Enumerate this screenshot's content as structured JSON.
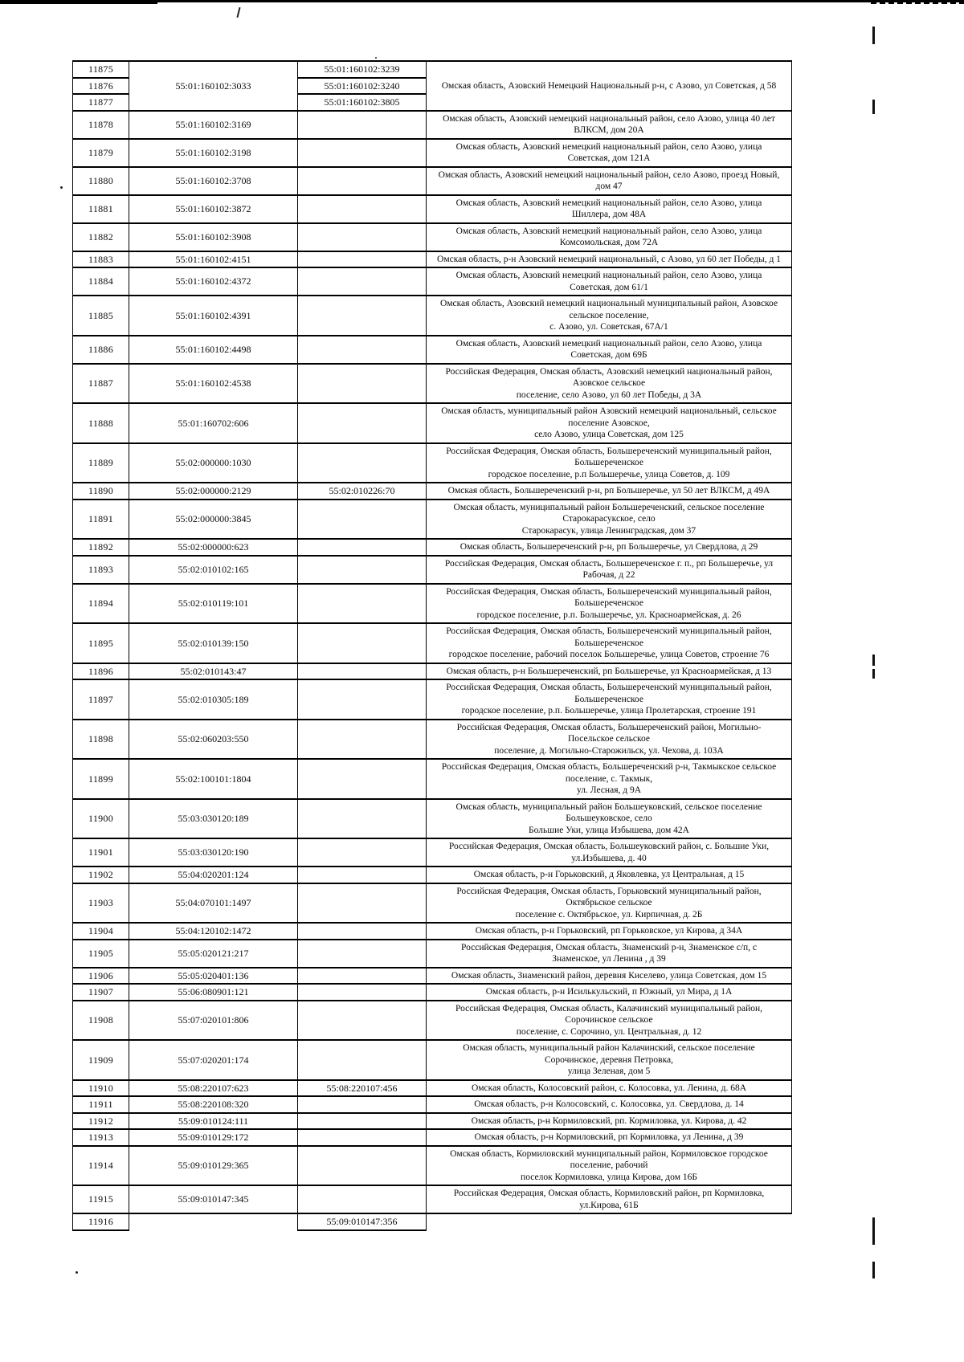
{
  "table": {
    "columns": [
      "row-number",
      "cadastral-number",
      "related-cadastral-number",
      "address"
    ],
    "rows": [
      {
        "num": "11875",
        "cad": "55:01:160102:3033",
        "cad_rowspan": 3,
        "cad2": "55:01:160102:3239",
        "addr": "Омская область, Азовский Немецкий Национальный р-н, с Азово, ул Советская, д 58",
        "addr_rowspan": 3
      },
      {
        "num": "11876",
        "cad2": "55:01:160102:3240"
      },
      {
        "num": "11877",
        "cad2": "55:01:160102:3805"
      },
      {
        "num": "11878",
        "cad": "55:01:160102:3169",
        "cad2": "",
        "addr": "Омская область, Азовский немецкий национальный район, село Азово, улица 40 лет\nВЛКСМ, дом 20А"
      },
      {
        "num": "11879",
        "cad": "55:01:160102:3198",
        "cad2": "",
        "addr": "Омская область, Азовский немецкий национальный район, село Азово, улица\nСоветская, дом 121А"
      },
      {
        "num": "11880",
        "cad": "55:01:160102:3708",
        "cad2": "",
        "addr": "Омская область, Азовский немецкий национальный район, село Азово, проезд Новый,\nдом 47"
      },
      {
        "num": "11881",
        "cad": "55:01:160102:3872",
        "cad2": "",
        "addr": "Омская область, Азовский немецкий национальный район, село Азово, улица\nШиллера, дом 48А"
      },
      {
        "num": "11882",
        "cad": "55:01:160102:3908",
        "cad2": "",
        "addr": "Омская область, Азовский немецкий национальный район, село Азово, улица\nКомсомольская, дом 72А"
      },
      {
        "num": "11883",
        "cad": "55:01:160102:4151",
        "cad2": "",
        "addr": "Омская область, р-н Азовский немецкий национальный, с Азово, ул 60 лет Победы, д 1"
      },
      {
        "num": "11884",
        "cad": "55:01:160102:4372",
        "cad2": "",
        "addr": "Омская область, Азовский немецкий национальный район, село Азово, улица\nСоветская, дом 61/1"
      },
      {
        "num": "11885",
        "cad": "55:01:160102:4391",
        "cad2": "",
        "addr": "Омская область, Азовский немецкий национальный муниципальный район, Азовское\nсельское поселение,\nс. Азово, ул. Советская, 67А/1"
      },
      {
        "num": "11886",
        "cad": "55:01:160102:4498",
        "cad2": "",
        "addr": "Омская область, Азовский немецкий национальный район, село Азово, улица\nСоветская, дом 69Б"
      },
      {
        "num": "11887",
        "cad": "55:01:160102:4538",
        "cad2": "",
        "addr": "Российская Федерация, Омская область, Азовский немецкий национальный район,\nАзовское сельское\nпоселение, село Азово, ул 60 лет Победы, д 3А"
      },
      {
        "num": "11888",
        "cad": "55:01:160702:606",
        "cad2": "",
        "addr": "Омская область, муниципальный район Азовский немецкий национальный, сельское\nпоселение Азовское,\nсело Азово, улица Советская, дом 125"
      },
      {
        "num": "11889",
        "cad": "55:02:000000:1030",
        "cad2": "",
        "addr": "Российская Федерация, Омская область, Большереченский муниципальный район,\nБольшереченское\nгородское поселение, р.п Большеречье, улица Советов, д. 109"
      },
      {
        "num": "11890",
        "cad": "55:02:000000:2129",
        "cad2": "55:02:010226:70",
        "addr": "Омская область, Большереченский р-н, рп Большеречье, ул 50 лет ВЛКСМ, д 49А"
      },
      {
        "num": "11891",
        "cad": "55:02:000000:3845",
        "cad2": "",
        "addr": "Омская область, муниципальный район Большереченский, сельское поселение\nСтарокарасукское, село\nСтарокарасук, улица Ленинградская, дом 37"
      },
      {
        "num": "11892",
        "cad": "55:02:000000:623",
        "cad2": "",
        "addr": "Омская область, Большереченский р-н, рп Большеречье, ул Свердлова, д 29"
      },
      {
        "num": "11893",
        "cad": "55:02:010102:165",
        "cad2": "",
        "addr": "Российская Федерация, Омская область, Большереченское г. п., рп Большеречье, ул\nРабочая, д 22"
      },
      {
        "num": "11894",
        "cad": "55:02:010119:101",
        "cad2": "",
        "addr": "Российская Федерация, Омская область, Большереченский муниципальный район,\nБольшереченское\nгородское поселение, р.п. Большеречье, ул. Красноармейская, д. 26"
      },
      {
        "num": "11895",
        "cad": "55:02:010139:150",
        "cad2": "",
        "addr": "Российская Федерация, Омская область, Большереченский муниципальный район,\nБольшереченское\nгородское поселение, рабочий поселок Большеречье, улица Советов, строение 76"
      },
      {
        "num": "11896",
        "cad": "55:02:010143:47",
        "cad2": "",
        "addr": "Омская область, р-н Большереченский, рп Большеречье, ул Красноармейская, д 13"
      },
      {
        "num": "11897",
        "cad": "55:02:010305:189",
        "cad2": "",
        "addr": "Российская Федерация, Омская область, Большереченский муниципальный район,\nБольшереченское\nгородское поселение, р.п. Большеречье, улица Пролетарская, строение 191"
      },
      {
        "num": "11898",
        "cad": "55:02:060203:550",
        "cad2": "",
        "addr": "Российская Федерация, Омская область, Большереченский район, Могильно-\nПосельское сельское\nпоселение, д. Могильно-Старожильск, ул. Чехова, д. 103А"
      },
      {
        "num": "11899",
        "cad": "55:02:100101:1804",
        "cad2": "",
        "addr": "Российская Федерация, Омская область, Большереченский р-н, Такмыкское сельское\nпоселение, с. Такмык,\nул. Лесная, д 9А"
      },
      {
        "num": "11900",
        "cad": "55:03:030120:189",
        "cad2": "",
        "addr": "Омская область, муниципальный район Большеуковский, сельское поселение\nБольшеуковское, село\nБольшие Уки, улица Избышева, дом 42А"
      },
      {
        "num": "11901",
        "cad": "55:03:030120:190",
        "cad2": "",
        "addr": "Российская Федерация, Омская область, Большеуковский район, с. Большие Уки,\nул.Избышева, д. 40"
      },
      {
        "num": "11902",
        "cad": "55:04:020201:124",
        "cad2": "",
        "addr": "Омская область, р-н Горьковский, д Яковлевка, ул Центральная, д 15"
      },
      {
        "num": "11903",
        "cad": "55:04:070101:1497",
        "cad2": "",
        "addr": "Российская Федерация, Омская область, Горьковский муниципальный район,\nОктябрьское сельское\nпоселение с. Октябрьское, ул. Кирпичная, д. 2Б"
      },
      {
        "num": "11904",
        "cad": "55:04:120102:1472",
        "cad2": "",
        "addr": "Омская область, р-н Горьковский, рп Горьковское, ул Кирова, д 34А"
      },
      {
        "num": "11905",
        "cad": "55:05:020121:217",
        "cad2": "",
        "addr": "Российская Федерация, Омская область, Знаменский р-н, Знаменское с/п, с\nЗнаменское, ул Ленина , д 39"
      },
      {
        "num": "11906",
        "cad": "55:05:020401:136",
        "cad2": "",
        "addr": "Омская область, Знаменский район, деревня Киселево, улица Советская, дом 15"
      },
      {
        "num": "11907",
        "cad": "55:06:080901:121",
        "cad2": "",
        "addr": "Омская область, р-н Исилькульский, п Южный, ул Мира, д 1А"
      },
      {
        "num": "11908",
        "cad": "55:07:020101:806",
        "cad2": "",
        "addr": "Российская Федерация, Омская область, Калачинский муниципальный район,\nСорочинское сельское\nпоселение, с. Сорочино, ул. Центральная, д. 12"
      },
      {
        "num": "11909",
        "cad": "55:07:020201:174",
        "cad2": "",
        "addr": "Омская область, муниципальный район Калачинский, сельское поселение\nСорочинское, деревня Петровка,\nулица Зеленая, дом 5"
      },
      {
        "num": "11910",
        "cad": "55:08:220107:623",
        "cad2": "55:08:220107:456",
        "addr": "Омская область, Колосовский район, с. Колосовка, ул. Ленина, д. 68А"
      },
      {
        "num": "11911",
        "cad": "55:08:220108:320",
        "cad2": "",
        "addr": "Омская область, р-н Колосовский, с. Колосовка, ул. Свердлова, д. 14"
      },
      {
        "num": "11912",
        "cad": "55:09:010124:111",
        "cad2": "",
        "addr": "Омская область, р-н Кормиловский, рп. Кормиловка, ул. Кирова, д. 42"
      },
      {
        "num": "11913",
        "cad": "55:09:010129:172",
        "cad2": "",
        "addr": "Омская область, р-н Кормиловский, рп Кормиловка, ул Ленина, д 39"
      },
      {
        "num": "11914",
        "cad": "55:09:010129:365",
        "cad2": "",
        "addr": "Омская область, Кормиловский муниципальный район, Кормиловское городское\nпоселение, рабочий\nпоселок Кормиловка, улица Кирова, дом 16Б"
      },
      {
        "num": "11915",
        "cad": "55:09:010147:345",
        "cad2": "",
        "addr": "Российская Федерация, Омская область, Кормиловский район, рп Кормиловка,\nул.Кирова, 61Б"
      },
      {
        "num": "11916",
        "cad": null,
        "cad2": "55:09:010147:356"
      }
    ]
  }
}
